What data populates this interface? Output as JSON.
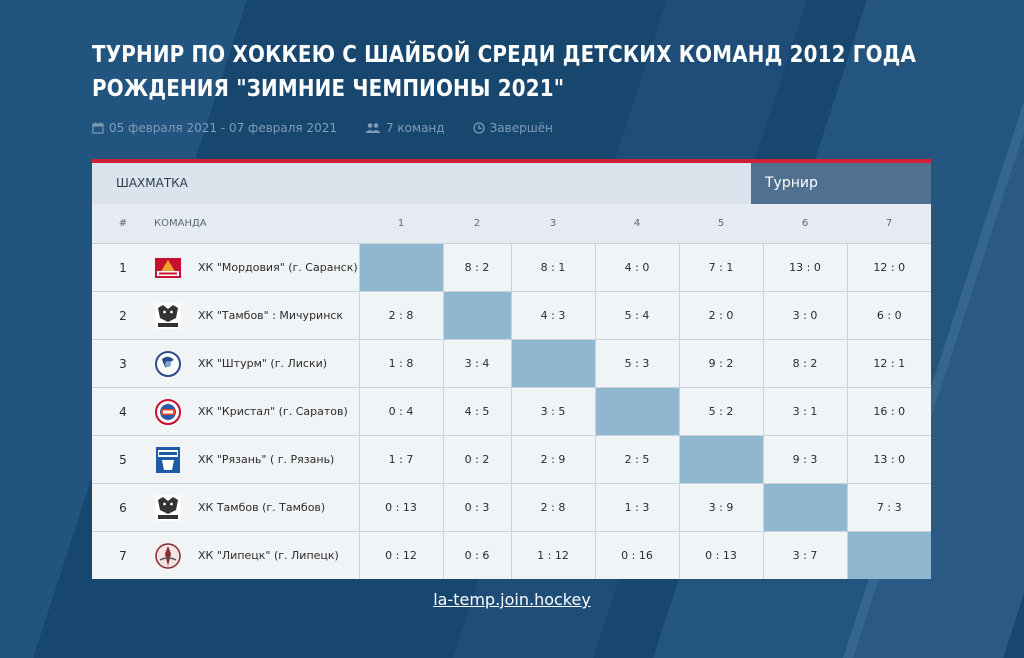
{
  "title": "ТУРНИР ПО ХОККЕЮ С ШАЙБОЙ СРЕДИ ДЕТСКИХ КОМАНД 2012 ГОДА РОЖДЕНИЯ \"ЗИМНИЕ ЧЕМПИОНЫ 2021\"",
  "meta": {
    "dates": "05 февраля 2021 - 07 февраля 2021",
    "teams_count": "7 команд",
    "status": "Завершён"
  },
  "panel": {
    "left_label": "ШАХМАТКА",
    "right_label": "Турнир"
  },
  "table": {
    "header_num": "#",
    "header_team": "КОМАНДА",
    "columns": [
      "1",
      "2",
      "3",
      "4",
      "5",
      "6",
      "7"
    ],
    "rows": [
      {
        "num": "1",
        "team": "ХК \"Мордовия\" (г. Саранск)",
        "logo": "mordovia-logo",
        "scores": [
          "",
          "8 : 2",
          "8 : 1",
          "4 : 0",
          "7 : 1",
          "13 : 0",
          "12 : 0"
        ]
      },
      {
        "num": "2",
        "team": "ХК \"Тамбов\" : Мичуринск",
        "logo": "tambov-logo",
        "scores": [
          "2 : 8",
          "",
          "4 : 3",
          "5 : 4",
          "2 : 0",
          "3 : 0",
          "6 : 0"
        ]
      },
      {
        "num": "3",
        "team": "ХК \"Штурм\" (г. Лиски)",
        "logo": "shturm-logo",
        "scores": [
          "1 : 8",
          "3 : 4",
          "",
          "5 : 3",
          "9 : 2",
          "8 : 2",
          "12 : 1"
        ]
      },
      {
        "num": "4",
        "team": "ХК \"Кристал\" (г. Саратов)",
        "logo": "kristall-logo",
        "scores": [
          "0 : 4",
          "4 : 5",
          "3 : 5",
          "",
          "5 : 2",
          "3 : 1",
          "16 : 0"
        ]
      },
      {
        "num": "5",
        "team": "ХК \"Рязань\" ( г. Рязань)",
        "logo": "ryazan-logo",
        "scores": [
          "1 : 7",
          "0 : 2",
          "2 : 9",
          "2 : 5",
          "",
          "9 : 3",
          "13 : 0"
        ]
      },
      {
        "num": "6",
        "team": "ХК Тамбов (г. Тамбов)",
        "logo": "tambov-logo",
        "scores": [
          "0 : 13",
          "0 : 3",
          "2 : 8",
          "1 : 3",
          "3 : 9",
          "",
          "7 : 3"
        ]
      },
      {
        "num": "7",
        "team": "ХК \"Липецк\" (г. Липецк)",
        "logo": "lipetsk-logo",
        "scores": [
          "0 : 12",
          "0 : 6",
          "1 : 12",
          "0 : 16",
          "0 : 13",
          "3 : 7",
          ""
        ]
      }
    ]
  },
  "footer": {
    "link": "la-temp.join.hockey"
  },
  "colors": {
    "accent_red": "#d21f36",
    "tab_blue": "#50708f",
    "diag": "#8fb7d0"
  }
}
